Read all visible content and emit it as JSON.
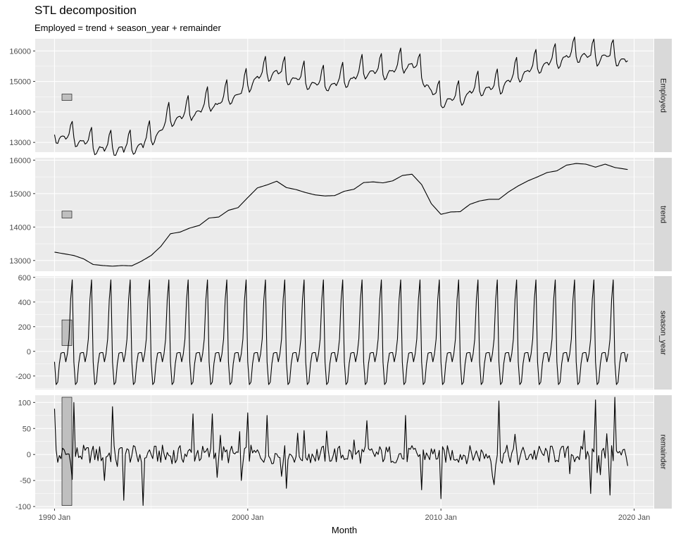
{
  "chart_data": {
    "type": "line",
    "title": "STL decomposition",
    "subtitle": "Employed = trend + season_year + remainder",
    "xlabel": "Month",
    "x_ticks": [
      "1990 Jan",
      "2000 Jan",
      "2010 Jan",
      "2020 Jan"
    ],
    "x_range": [
      "1989-01",
      "2021-01"
    ],
    "series_start": "1990-01",
    "series_end": "2019-09",
    "panels": [
      {
        "name": "Employed",
        "ylim": [
          12680,
          16400
        ],
        "y_ticks": [
          13000,
          14000,
          15000,
          16000
        ],
        "scale_bar": [
          14377,
          14585
        ],
        "yearly_peaks": [
          13700,
          13400,
          13300,
          13400,
          14400,
          14350,
          14800,
          14800,
          15400,
          15800,
          16000,
          15800,
          15600,
          15650,
          15850,
          16000,
          16100,
          16150,
          16000,
          15250,
          15100,
          15250,
          15300,
          15400,
          15600,
          15950,
          16200,
          16400,
          16350,
          16300
        ],
        "sampled_values": [
          {
            "x": "1990-01",
            "y": 13240
          },
          {
            "x": "1991-01",
            "y": 12700
          },
          {
            "x": "1992-01",
            "y": 12560
          },
          {
            "x": "1993-01",
            "y": 12650
          },
          {
            "x": "1994-01",
            "y": 13050
          },
          {
            "x": "1995-01",
            "y": 13560
          },
          {
            "x": "1996-01",
            "y": 13780
          },
          {
            "x": "1997-01",
            "y": 14050
          },
          {
            "x": "1998-01",
            "y": 14240
          },
          {
            "x": "1999-01",
            "y": 14560
          },
          {
            "x": "2000-01",
            "y": 14900
          },
          {
            "x": "2001-01",
            "y": 15090
          },
          {
            "x": "2002-01",
            "y": 15050
          },
          {
            "x": "2003-01",
            "y": 14800
          },
          {
            "x": "2004-01",
            "y": 14800
          },
          {
            "x": "2005-01",
            "y": 14900
          },
          {
            "x": "2006-01",
            "y": 15050
          },
          {
            "x": "2007-01",
            "y": 15200
          },
          {
            "x": "2008-01",
            "y": 15250
          },
          {
            "x": "2009-01",
            "y": 14420
          },
          {
            "x": "2010-01",
            "y": 14150
          },
          {
            "x": "2011-01",
            "y": 14250
          },
          {
            "x": "2012-01",
            "y": 14500
          },
          {
            "x": "2013-01",
            "y": 14560
          },
          {
            "x": "2014-01",
            "y": 14700
          },
          {
            "x": "2015-01",
            "y": 15180
          },
          {
            "x": "2016-01",
            "y": 15490
          },
          {
            "x": "2017-01",
            "y": 15650
          },
          {
            "x": "2018-01",
            "y": 15540
          },
          {
            "x": "2019-01",
            "y": 15540
          },
          {
            "x": "2019-09",
            "y": 15650
          }
        ]
      },
      {
        "name": "trend",
        "ylim": [
          12680,
          16070
        ],
        "y_ticks": [
          13000,
          14000,
          15000,
          16000
        ],
        "scale_bar": [
          14270,
          14478
        ],
        "sampled_values": [
          {
            "x": "1990-01",
            "y": 13250
          },
          {
            "x": "1990-07",
            "y": 13200
          },
          {
            "x": "1991-01",
            "y": 13150
          },
          {
            "x": "1991-07",
            "y": 13050
          },
          {
            "x": "1992-01",
            "y": 12880
          },
          {
            "x": "1992-07",
            "y": 12850
          },
          {
            "x": "1993-01",
            "y": 12830
          },
          {
            "x": "1993-07",
            "y": 12850
          },
          {
            "x": "1994-01",
            "y": 12840
          },
          {
            "x": "1994-07",
            "y": 12980
          },
          {
            "x": "1995-01",
            "y": 13150
          },
          {
            "x": "1995-07",
            "y": 13420
          },
          {
            "x": "1996-01",
            "y": 13800
          },
          {
            "x": "1996-07",
            "y": 13850
          },
          {
            "x": "1997-01",
            "y": 13970
          },
          {
            "x": "1997-07",
            "y": 14050
          },
          {
            "x": "1998-01",
            "y": 14270
          },
          {
            "x": "1998-07",
            "y": 14300
          },
          {
            "x": "1999-01",
            "y": 14500
          },
          {
            "x": "1999-07",
            "y": 14580
          },
          {
            "x": "2000-01",
            "y": 14880
          },
          {
            "x": "2000-07",
            "y": 15170
          },
          {
            "x": "2001-01",
            "y": 15260
          },
          {
            "x": "2001-07",
            "y": 15370
          },
          {
            "x": "2002-01",
            "y": 15180
          },
          {
            "x": "2002-07",
            "y": 15120
          },
          {
            "x": "2003-01",
            "y": 15030
          },
          {
            "x": "2003-07",
            "y": 14960
          },
          {
            "x": "2004-01",
            "y": 14930
          },
          {
            "x": "2004-07",
            "y": 14940
          },
          {
            "x": "2005-01",
            "y": 15070
          },
          {
            "x": "2005-07",
            "y": 15130
          },
          {
            "x": "2006-01",
            "y": 15330
          },
          {
            "x": "2006-07",
            "y": 15350
          },
          {
            "x": "2007-01",
            "y": 15320
          },
          {
            "x": "2007-07",
            "y": 15380
          },
          {
            "x": "2008-01",
            "y": 15540
          },
          {
            "x": "2008-07",
            "y": 15580
          },
          {
            "x": "2009-01",
            "y": 15270
          },
          {
            "x": "2009-07",
            "y": 14700
          },
          {
            "x": "2010-01",
            "y": 14380
          },
          {
            "x": "2010-07",
            "y": 14450
          },
          {
            "x": "2011-01",
            "y": 14460
          },
          {
            "x": "2011-07",
            "y": 14680
          },
          {
            "x": "2012-01",
            "y": 14780
          },
          {
            "x": "2012-07",
            "y": 14830
          },
          {
            "x": "2013-01",
            "y": 14830
          },
          {
            "x": "2013-07",
            "y": 15050
          },
          {
            "x": "2014-01",
            "y": 15230
          },
          {
            "x": "2014-07",
            "y": 15380
          },
          {
            "x": "2015-01",
            "y": 15500
          },
          {
            "x": "2015-07",
            "y": 15630
          },
          {
            "x": "2016-01",
            "y": 15680
          },
          {
            "x": "2016-07",
            "y": 15850
          },
          {
            "x": "2017-01",
            "y": 15900
          },
          {
            "x": "2017-07",
            "y": 15880
          },
          {
            "x": "2018-01",
            "y": 15790
          },
          {
            "x": "2018-07",
            "y": 15880
          },
          {
            "x": "2019-01",
            "y": 15780
          },
          {
            "x": "2019-09",
            "y": 15720
          }
        ]
      },
      {
        "name": "season_year",
        "ylim": [
          -310,
          610
        ],
        "y_ticks": [
          -200,
          0,
          200,
          400,
          600
        ],
        "scale_bar": [
          47,
          255
        ],
        "monthly_pattern": [
          -85,
          -270,
          -250,
          -100,
          -15,
          -10,
          -10,
          -85,
          -20,
          100,
          420,
          580
        ]
      },
      {
        "name": "remainder",
        "ylim": [
          -104,
          114
        ],
        "y_ticks": [
          -100,
          -50,
          0,
          50,
          100
        ],
        "scale_bar": [
          -98,
          110
        ],
        "sampled_values": [
          {
            "x": "1990-01",
            "y": 88
          },
          {
            "x": "1990-03",
            "y": -15
          },
          {
            "x": "1990-12",
            "y": -48
          },
          {
            "x": "1991-01",
            "y": 100
          },
          {
            "x": "1992-08",
            "y": -50
          },
          {
            "x": "1993-01",
            "y": 92
          },
          {
            "x": "1993-08",
            "y": -88
          },
          {
            "x": "1994-08",
            "y": -98
          },
          {
            "x": "1997-03",
            "y": 78
          },
          {
            "x": "1998-03",
            "y": 78
          },
          {
            "x": "1999-09",
            "y": -50
          },
          {
            "x": "2000-01",
            "y": 80
          },
          {
            "x": "2001-01",
            "y": 75
          },
          {
            "x": "2002-01",
            "y": -65
          },
          {
            "x": "2006-03",
            "y": 65
          },
          {
            "x": "2008-03",
            "y": 75
          },
          {
            "x": "2009-01",
            "y": -68
          },
          {
            "x": "2010-01",
            "y": -85
          },
          {
            "x": "2012-10",
            "y": -58
          },
          {
            "x": "2013-01",
            "y": 103
          },
          {
            "x": "2017-10",
            "y": -75
          },
          {
            "x": "2018-01",
            "y": 105
          },
          {
            "x": "2018-10",
            "y": -78
          },
          {
            "x": "2019-01",
            "y": 110
          },
          {
            "x": "2019-09",
            "y": -22
          }
        ]
      }
    ],
    "grid": true,
    "legend": "none",
    "colors": {
      "panel_bg": "#ebebeb",
      "grid": "#ffffff",
      "strip_bg": "#d9d9d9",
      "line": "#000000",
      "bar_fill": "#bfbfbf"
    }
  }
}
